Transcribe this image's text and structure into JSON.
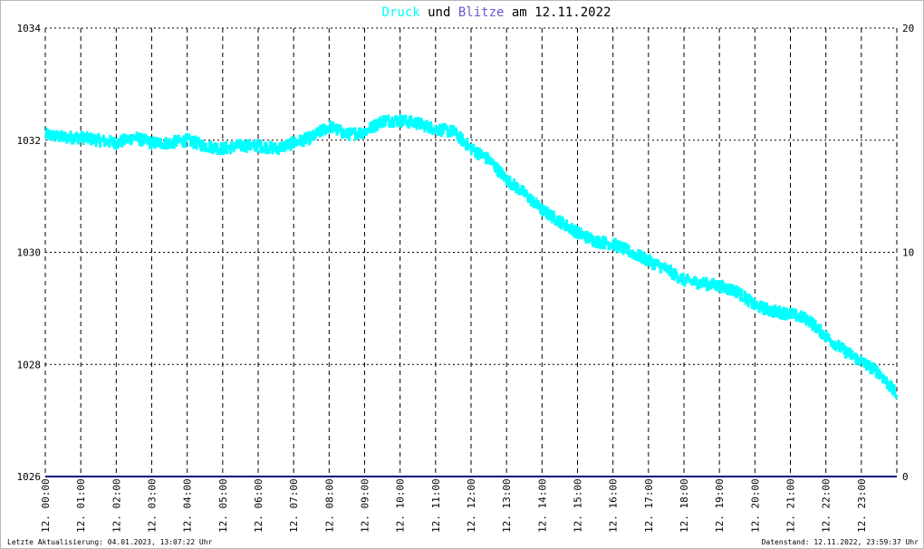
{
  "chart_data": {
    "type": "line",
    "title": {
      "part1": "Druck",
      "part2": " und ",
      "part3": "Blitze",
      "part4": " am 12.11.2022"
    },
    "colors": {
      "druck": "#00ffff",
      "blitze": "#6a5acd",
      "blitze_line": "#000080",
      "title_text": "#000000",
      "grid": "#000000"
    },
    "y_left": {
      "min": 1026,
      "max": 1034,
      "ticks": [
        "1034",
        "1032",
        "1030",
        "1028",
        "1026"
      ]
    },
    "y_right": {
      "min": 0,
      "max": 20,
      "ticks": [
        "20",
        "10",
        "0"
      ]
    },
    "x_range_hours": [
      0,
      24
    ],
    "x_ticks": [
      "12. 00:00",
      "12. 01:00",
      "12. 02:00",
      "12. 03:00",
      "12. 04:00",
      "12. 05:00",
      "12. 06:00",
      "12. 07:00",
      "12. 08:00",
      "12. 09:00",
      "12. 10:00",
      "12. 11:00",
      "12. 12:00",
      "12. 13:00",
      "12. 14:00",
      "12. 15:00",
      "12. 16:00",
      "12. 17:00",
      "12. 18:00",
      "12. 19:00",
      "12. 20:00",
      "12. 21:00",
      "12. 22:00",
      "12. 23:00"
    ],
    "grid": "dashed",
    "series": [
      {
        "name": "Druck",
        "axis": "left",
        "x": [
          0,
          0.5,
          1,
          1.5,
          2,
          2.5,
          3,
          3.5,
          4,
          4.5,
          5,
          5.5,
          6,
          6.5,
          7,
          7.5,
          8,
          8.5,
          9,
          9.5,
          10,
          10.5,
          11,
          11.5,
          12,
          12.5,
          13,
          13.5,
          14,
          14.5,
          15,
          15.5,
          16,
          16.5,
          17,
          17.5,
          18,
          18.5,
          19,
          19.5,
          20,
          20.5,
          21,
          21.5,
          22,
          22.5,
          23,
          23.5,
          24
        ],
        "values": [
          1032.1,
          1032.05,
          1032.05,
          1032.0,
          1031.95,
          1032.05,
          1031.95,
          1031.95,
          1032.0,
          1031.9,
          1031.85,
          1031.9,
          1031.9,
          1031.85,
          1031.95,
          1032.05,
          1032.25,
          1032.1,
          1032.15,
          1032.35,
          1032.35,
          1032.3,
          1032.2,
          1032.15,
          1031.85,
          1031.65,
          1031.3,
          1031.05,
          1030.75,
          1030.55,
          1030.35,
          1030.2,
          1030.15,
          1030.0,
          1029.85,
          1029.7,
          1029.5,
          1029.45,
          1029.4,
          1029.3,
          1029.05,
          1028.95,
          1028.9,
          1028.8,
          1028.5,
          1028.25,
          1028.05,
          1027.85,
          1027.45
        ]
      },
      {
        "name": "Blitze",
        "axis": "right",
        "x": [
          0,
          24
        ],
        "values": [
          0,
          0
        ]
      }
    ]
  },
  "footer": {
    "left": "Letzte Aktualisierung: 04.01.2023, 13:07:22 Uhr",
    "right": "Datenstand: 12.11.2022, 23:59:37 Uhr"
  }
}
